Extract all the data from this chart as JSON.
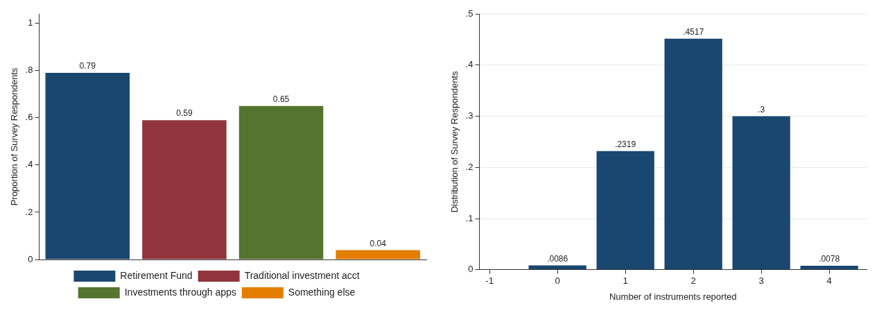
{
  "chart_data": [
    {
      "type": "bar",
      "ylabel": "Proportion of Survey Respondents",
      "categories": [
        null,
        null,
        null,
        null
      ],
      "series": [
        {
          "name": "Retirement Fund",
          "color": "#1a476f",
          "values": [
            0.79,
            null,
            null,
            null
          ]
        },
        {
          "name": "Traditional investment acct",
          "color": "#90353b",
          "values": [
            null,
            0.59,
            null,
            null
          ]
        },
        {
          "name": "Investments through apps",
          "color": "#55752f",
          "values": [
            null,
            null,
            0.65,
            null
          ]
        },
        {
          "name": "Something else",
          "color": "#e37e00",
          "values": [
            null,
            null,
            null,
            0.04
          ]
        }
      ],
      "ylim": [
        0,
        1.04
      ],
      "yticks": [
        {
          "value": 0,
          "label": "0"
        },
        {
          "value": 0.2,
          "label": ".2"
        },
        {
          "value": 0.4,
          "label": ".4"
        },
        {
          "value": 0.6,
          "label": ".6"
        },
        {
          "value": 0.8,
          "label": ".8"
        },
        {
          "value": 1,
          "label": "1"
        }
      ],
      "data_labels": true,
      "legend": "bottom",
      "grid": false
    },
    {
      "type": "bar",
      "xlabel": "Number of instruments reported",
      "ylabel": "Distribution of Survey Respondents",
      "x": [
        0,
        1,
        2,
        3,
        4
      ],
      "series": [
        {
          "color": "#1a476f",
          "values": [
            0.0086,
            0.2319,
            0.4517,
            0.3,
            0.0078
          ],
          "value_labels": [
            ".0086",
            ".2319",
            ".4517",
            ".3",
            ".0078"
          ]
        }
      ],
      "xlim": [
        -1.15,
        4.55
      ],
      "xticks": [
        -1,
        0,
        1,
        2,
        3,
        4
      ],
      "ylim": [
        0,
        0.5
      ],
      "yticks": [
        0,
        {
          "value": 0.1,
          "label": ".1"
        },
        {
          "value": 0.2,
          "label": ".2"
        },
        {
          "value": 0.3,
          "label": ".3"
        },
        {
          "value": 0.4,
          "label": ".4"
        },
        {
          "value": 0.5,
          "label": ".5"
        }
      ],
      "grid": "y"
    }
  ]
}
